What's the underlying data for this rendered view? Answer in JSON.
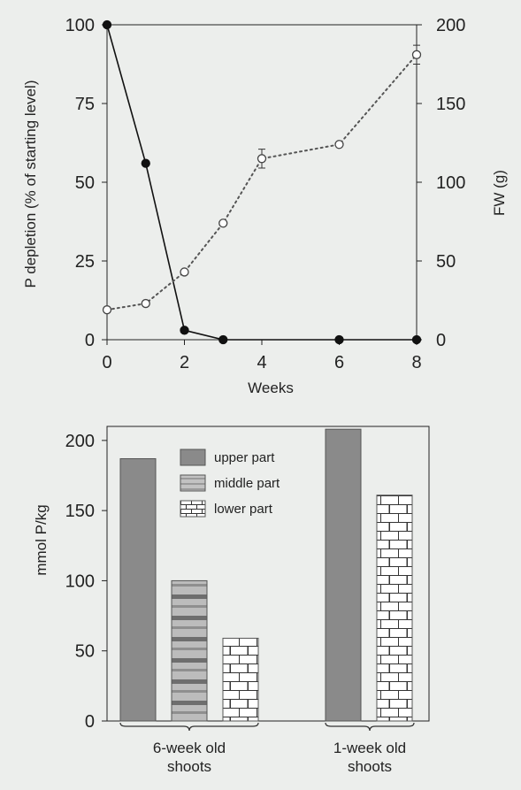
{
  "chart_data": [
    {
      "type": "line",
      "title": "",
      "xlabel": "Weeks",
      "ylabel": "P depletion (% of starting level)",
      "y2label": "FW (g)",
      "xlim": [
        0,
        8
      ],
      "ylim": [
        0,
        100
      ],
      "y2lim": [
        0,
        200
      ],
      "x_ticks": [
        "0",
        "2",
        "4",
        "6",
        "8"
      ],
      "y_ticks": [
        "0",
        "25",
        "50",
        "75",
        "100"
      ],
      "y2_ticks": [
        "0",
        "50",
        "100",
        "150",
        "200"
      ],
      "grid": false,
      "series": [
        {
          "axis": "left",
          "style": "solid, filled circles",
          "color": "#111111",
          "x": [
            0,
            1,
            2,
            3,
            6,
            8
          ],
          "y": [
            100,
            56,
            3,
            0,
            0,
            0
          ]
        },
        {
          "axis": "right",
          "style": "dotted, open circles with error bars",
          "color": "#555555",
          "x": [
            0,
            1,
            2,
            3,
            4,
            6,
            8
          ],
          "y": [
            19,
            23,
            43,
            74,
            115,
            124,
            181
          ],
          "error": [
            0,
            0,
            0,
            0,
            6,
            0,
            6
          ]
        }
      ]
    },
    {
      "type": "bar",
      "title": "",
      "xlabel": "",
      "ylabel": "mmol P/kg",
      "ylim": [
        0,
        210
      ],
      "y_ticks": [
        "0",
        "50",
        "100",
        "150",
        "200"
      ],
      "legend_position": "top-left",
      "groups": [
        "6-week old shoots",
        "1-week old shoots"
      ],
      "group_lines": [
        [
          "6-week old",
          "shoots"
        ],
        [
          "1-week old",
          "shoots"
        ]
      ],
      "series": [
        {
          "name": "upper part",
          "pattern": "solid",
          "values": [
            187,
            208
          ]
        },
        {
          "name": "middle part",
          "pattern": "bands",
          "values": [
            100,
            null
          ]
        },
        {
          "name": "lower part",
          "pattern": "brick",
          "values": [
            59,
            161
          ]
        }
      ]
    }
  ]
}
